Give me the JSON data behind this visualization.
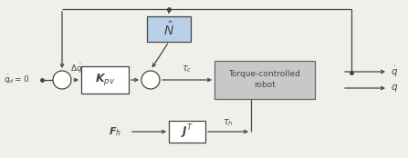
{
  "bg_color": "#f0f0eb",
  "line_color": "#444444",
  "box_robot_color": "#c8c8c8",
  "box_robot_edge": "#666666",
  "box_Kpv_color": "#ffffff",
  "box_Kpv_edge": "#444444",
  "box_Nhat_color": "#b8d0e8",
  "box_Nhat_edge": "#444444",
  "box_JT_color": "#ffffff",
  "box_JT_edge": "#444444",
  "circle_color": "#ffffff",
  "circle_edge": "#444444",
  "arrow_color": "#444444",
  "fig_width": 4.47,
  "fig_height": 1.74,
  "dpi": 100
}
